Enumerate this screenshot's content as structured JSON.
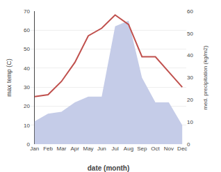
{
  "chart_data": {
    "type": "line",
    "categories": [
      "Jan",
      "Feb",
      "Mar",
      "Apr",
      "May",
      "Jun",
      "Jul",
      "Aug",
      "Sep",
      "Oct",
      "Nov",
      "Dec"
    ],
    "series": [
      {
        "type": "area",
        "color": "#c5cce8",
        "values": [
          12,
          16,
          17,
          22,
          25,
          25,
          62,
          65,
          35,
          22,
          22,
          10
        ]
      },
      {
        "type": "line",
        "color": "#c0504d",
        "values": [
          25,
          26,
          33,
          43,
          57,
          61,
          68,
          63,
          46,
          46,
          38,
          30
        ]
      }
    ],
    "xlabel": "date (month)",
    "ylabel": "max temp (C)",
    "y2label": "med. precipitation (kg/m2)",
    "ylim": [
      0,
      70
    ],
    "yticks": [
      0,
      10,
      20,
      30,
      40,
      50,
      60,
      70
    ],
    "y2lim": [
      0,
      60
    ],
    "y2ticks": [
      0,
      10,
      20,
      30,
      40,
      50,
      60
    ],
    "grid": true
  }
}
